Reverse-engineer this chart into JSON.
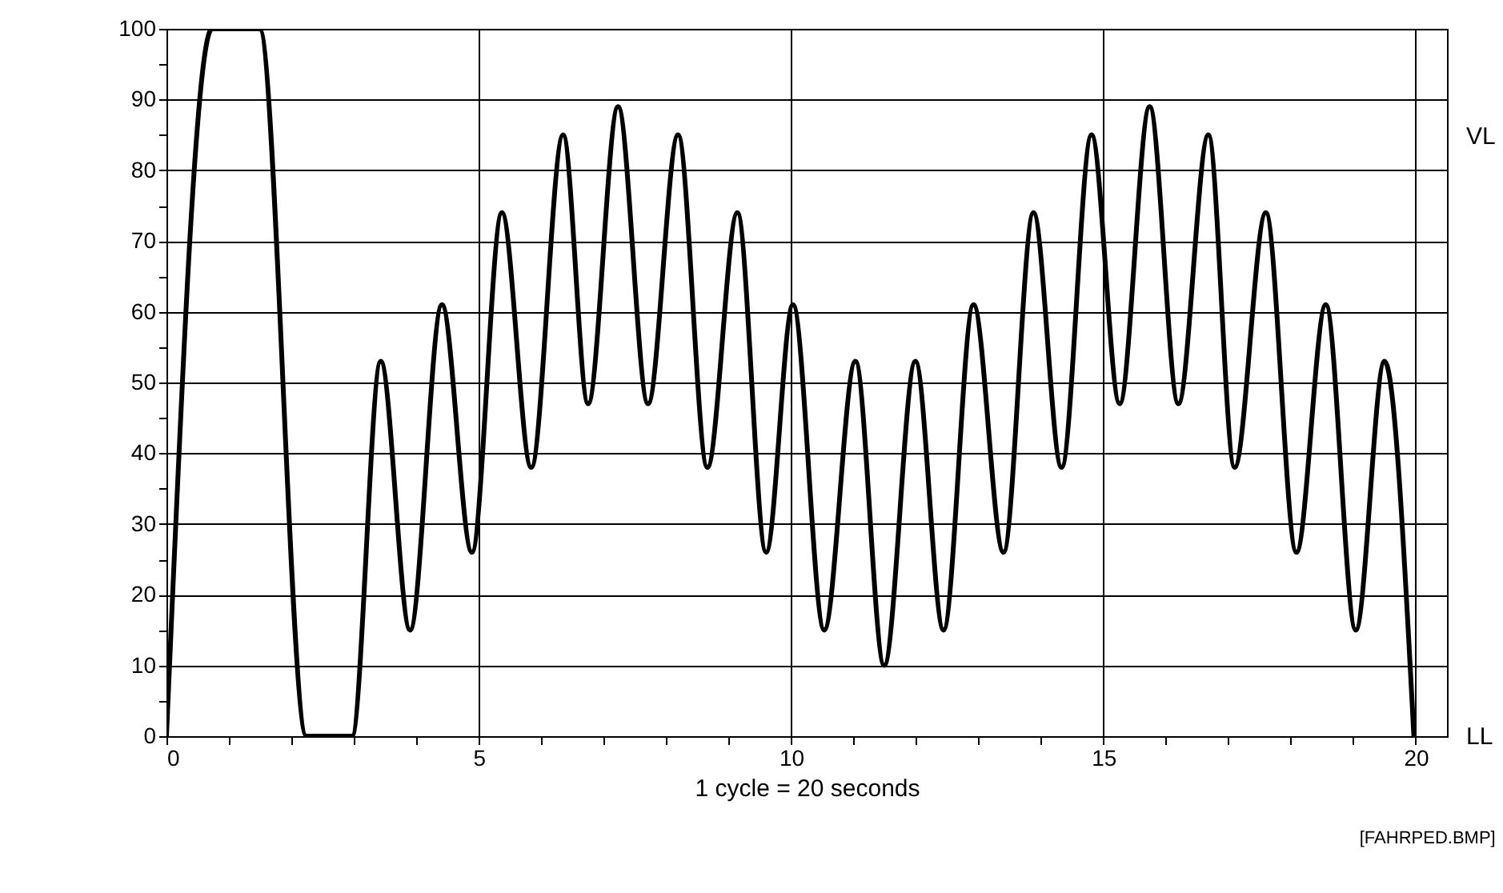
{
  "chart_data": {
    "type": "line",
    "xlabel": "1 cycle = 20 seconds",
    "annotations": [
      "[FAHRPED.BMP]",
      "VL",
      "LL"
    ],
    "x": [
      0,
      0.73,
      1.49,
      2.24,
      2.97,
      3.43,
      3.9,
      4.41,
      4.89,
      5.37,
      5.84,
      6.35,
      6.75,
      7.23,
      7.71,
      8.19,
      8.66,
      9.14,
      9.6,
      10.03,
      10.53,
      11.03,
      11.49,
      11.99,
      12.44,
      12.92,
      13.4,
      13.88,
      14.33,
      14.81,
      15.26,
      15.74,
      16.2,
      16.68,
      17.1,
      17.6,
      18.09,
      18.56,
      19.04,
      19.5,
      19.97
    ],
    "series": [
      {
        "color": "#000000",
        "values": [
          0,
          100,
          100,
          0,
          0,
          53,
          15,
          61,
          26,
          74,
          38,
          85,
          47,
          89,
          47,
          85,
          38,
          74,
          26,
          61,
          15,
          53,
          10,
          53,
          15,
          61,
          26,
          74,
          38,
          85,
          47,
          89,
          47,
          85,
          38,
          74,
          26,
          61,
          15,
          53,
          0
        ]
      }
    ],
    "xlim": [
      0,
      20.5
    ],
    "xticks": [
      0,
      {
        "value": 1,
        "label": null
      },
      {
        "value": 2,
        "label": null
      },
      {
        "value": 3,
        "label": null
      },
      {
        "value": 4,
        "label": null
      },
      5,
      {
        "value": 6,
        "label": null
      },
      {
        "value": 7,
        "label": null
      },
      {
        "value": 8,
        "label": null
      },
      {
        "value": 9,
        "label": null
      },
      10,
      {
        "value": 11,
        "label": null
      },
      {
        "value": 12,
        "label": null
      },
      {
        "value": 13,
        "label": null
      },
      {
        "value": 14,
        "label": null
      },
      15,
      {
        "value": 16,
        "label": null
      },
      {
        "value": 17,
        "label": null
      },
      {
        "value": 18,
        "label": null
      },
      {
        "value": 19,
        "label": null
      },
      20
    ],
    "ylim": [
      0,
      100
    ],
    "yticks": [
      0,
      {
        "value": 5,
        "label": null
      },
      10,
      {
        "value": 15,
        "label": null
      },
      20,
      {
        "value": 25,
        "label": null
      },
      30,
      {
        "value": 35,
        "label": null
      },
      40,
      {
        "value": 45,
        "label": null
      },
      50,
      {
        "value": 55,
        "label": null
      },
      60,
      {
        "value": 65,
        "label": null
      },
      70,
      {
        "value": 75,
        "label": null
      },
      80,
      {
        "value": 85,
        "label": null
      },
      90,
      {
        "value": 95,
        "label": null
      },
      100
    ],
    "grid": true,
    "marker": "none",
    "line_style": "solid"
  }
}
